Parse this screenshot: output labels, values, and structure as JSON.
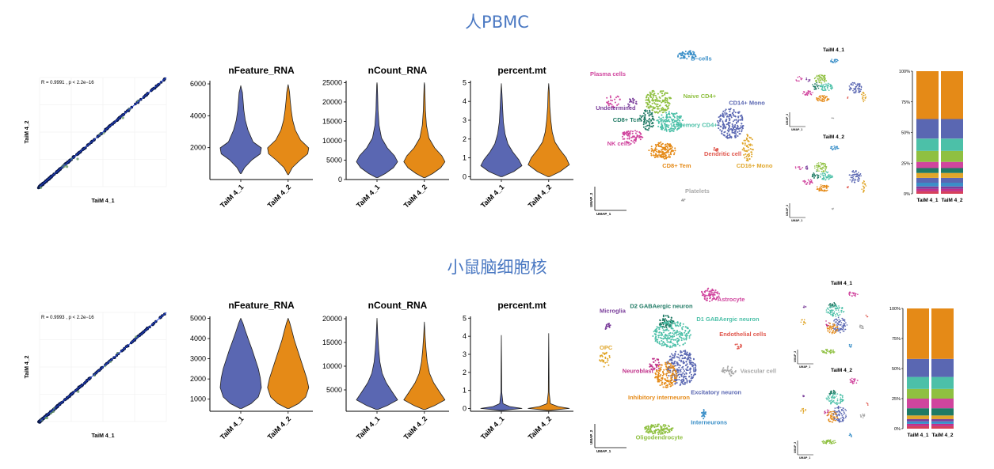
{
  "sections": [
    {
      "title": "人PBMC",
      "scatter": {
        "annotation": "R = 0.9991 , p < 2.2e−16",
        "xlabel": "TaiM 4_1",
        "ylabel": "TaiM 4_2"
      },
      "violins": [
        {
          "title": "nFeature_RNA",
          "ticks": [
            "2000",
            "4000",
            "6000"
          ],
          "tick_values": [
            2000,
            4000,
            6000
          ],
          "ylim": [
            0,
            6200
          ],
          "categories": [
            "TaiM 4_1",
            "TaiM 4_2"
          ]
        },
        {
          "title": "nCount_RNA",
          "ticks": [
            "0",
            "5000",
            "10000",
            "15000",
            "20000",
            "25000"
          ],
          "tick_values": [
            0,
            5000,
            10000,
            15000,
            20000,
            25000
          ],
          "ylim": [
            0,
            25500
          ],
          "categories": [
            "TaiM 4_1",
            "TaiM 4_2"
          ]
        },
        {
          "title": "percent.mt",
          "ticks": [
            "0",
            "1",
            "2",
            "3",
            "4",
            "5"
          ],
          "tick_values": [
            0,
            1,
            2,
            3,
            4,
            5
          ],
          "ylim": [
            -0.15,
            5.1
          ],
          "categories": [
            "TaiM 4_1",
            "TaiM 4_2"
          ]
        }
      ],
      "umap": {
        "xlabel": "UMAP_1",
        "ylabel": "UMAP_2",
        "clusters": [
          {
            "label": "B−cells",
            "color": "#3a8fc8"
          },
          {
            "label": "Plasma cells",
            "color": "#d0459e"
          },
          {
            "label": "Undetermined",
            "color": "#7b3f9b"
          },
          {
            "label": "Naive CD4+",
            "color": "#8fc041"
          },
          {
            "label": "CD14+ Mono",
            "color": "#5a67b2"
          },
          {
            "label": "CD8+ Tcm",
            "color": "#1f7a64"
          },
          {
            "label": "Memory CD4+",
            "color": "#4cc0a8"
          },
          {
            "label": "NK cells",
            "color": "#d0459e"
          },
          {
            "label": "Dendritic cell",
            "color": "#e0574d"
          },
          {
            "label": "CD8+ Tem",
            "color": "#e58a17"
          },
          {
            "label": "CD16+ Mono",
            "color": "#e0a62a"
          },
          {
            "label": "Platelets",
            "color": "#a9a9a9"
          }
        ]
      },
      "small_umaps": {
        "titles": [
          "TaiM 4_1",
          "TaiM 4_2"
        ],
        "xlabel": "UMAP_1",
        "ylabel": "UMAP_2"
      },
      "stacked": {
        "ticks": [
          "0%",
          "25%",
          "50%",
          "75%",
          "100%"
        ],
        "categories": [
          "TaiM 4_1",
          "TaiM 4_2"
        ],
        "colors": [
          "#d6415a",
          "#c0318a",
          "#7b3f9b",
          "#3a8fc8",
          "#5a67b2",
          "#e0a62a",
          "#1f7a64",
          "#d0459e",
          "#8fc041",
          "#4cc0a8",
          "#5a67b2",
          "#e58a17"
        ],
        "series": [
          {
            "values": [
              2,
              2
            ]
          },
          {
            "values": [
              2,
              2
            ]
          },
          {
            "values": [
              2,
              2
            ]
          },
          {
            "values": [
              3,
              3
            ]
          },
          {
            "values": [
              4,
              4
            ]
          },
          {
            "values": [
              4,
              4
            ]
          },
          {
            "values": [
              4,
              4
            ]
          },
          {
            "values": [
              5,
              5
            ]
          },
          {
            "values": [
              9,
              9
            ]
          },
          {
            "values": [
              10,
              10
            ]
          },
          {
            "values": [
              16,
              16
            ]
          },
          {
            "values": [
              39,
              39
            ]
          }
        ]
      }
    },
    {
      "title": "小鼠脑细胞核",
      "scatter": {
        "annotation": "R = 0.9993 , p < 2.2e−16",
        "xlabel": "TaiM 4_1",
        "ylabel": "TaiM 4_2"
      },
      "violins": [
        {
          "title": "nFeature_RNA",
          "ticks": [
            "1000",
            "2000",
            "3000",
            "4000",
            "5000"
          ],
          "tick_values": [
            1000,
            2000,
            3000,
            4000,
            5000
          ],
          "ylim": [
            400,
            5100
          ],
          "categories": [
            "TaiM 4_1",
            "TaiM 4_2"
          ]
        },
        {
          "title": "nCount_RNA",
          "ticks": [
            "5000",
            "10000",
            "15000",
            "20000"
          ],
          "tick_values": [
            5000,
            10000,
            15000,
            20000
          ],
          "ylim": [
            500,
            20500
          ],
          "categories": [
            "TaiM 4_1",
            "TaiM 4_2"
          ]
        },
        {
          "title": "percent.mt",
          "ticks": [
            "0",
            "1",
            "2",
            "3",
            "4",
            "5"
          ],
          "tick_values": [
            0,
            1,
            2,
            3,
            4,
            5
          ],
          "ylim": [
            -0.15,
            5.1
          ],
          "categories": [
            "TaiM 4_1",
            "TaiM 4_2"
          ]
        }
      ],
      "umap": {
        "xlabel": "UMAP_1",
        "ylabel": "UMAP_2",
        "clusters": [
          {
            "label": "Astrocyte",
            "color": "#d0459e"
          },
          {
            "label": "Microglia",
            "color": "#7b3f9b"
          },
          {
            "label": "D2 GABAergic neuron",
            "color": "#1f7a64"
          },
          {
            "label": "D1 GABAergic neuron",
            "color": "#4cc0a8"
          },
          {
            "label": "Endothelial cells",
            "color": "#e0574d"
          },
          {
            "label": "OPC",
            "color": "#e0a62a"
          },
          {
            "label": "Neuroblast",
            "color": "#c0318a"
          },
          {
            "label": "Vascular cell",
            "color": "#a9a9a9"
          },
          {
            "label": "Excitatory neuron",
            "color": "#5a67b2"
          },
          {
            "label": "Inhibitory interneuron",
            "color": "#e58a17"
          },
          {
            "label": "Interneurons",
            "color": "#3a8fc8"
          },
          {
            "label": "Oligodendrocyte",
            "color": "#8fc041"
          }
        ]
      },
      "small_umaps": {
        "titles": [
          "TaiM 4_1",
          "TaiM 4_2"
        ],
        "xlabel": "UMAP_1",
        "ylabel": "UMAP_2"
      },
      "stacked": {
        "ticks": [
          "0%",
          "25%",
          "50%",
          "75%",
          "100%"
        ],
        "categories": [
          "TaiM 4_1",
          "TaiM 4_2"
        ],
        "colors": [
          "#d6415a",
          "#c0318a",
          "#3a8fc8",
          "#7b3f9b",
          "#e0a62a",
          "#1f7a64",
          "#d0459e",
          "#8fc041",
          "#4cc0a8",
          "#5a67b2",
          "#e58a17"
        ],
        "series": [
          {
            "values": [
              2,
              2
            ]
          },
          {
            "values": [
              2,
              2
            ]
          },
          {
            "values": [
              2,
              2
            ]
          },
          {
            "values": [
              2,
              2
            ]
          },
          {
            "values": [
              3,
              3
            ]
          },
          {
            "values": [
              6,
              6
            ]
          },
          {
            "values": [
              8,
              8
            ]
          },
          {
            "values": [
              8,
              8
            ]
          },
          {
            "values": [
              10,
              10
            ]
          },
          {
            "values": [
              15,
              15
            ]
          },
          {
            "values": [
              42,
              42
            ]
          }
        ]
      }
    }
  ],
  "chart_data": [
    {
      "type": "scatter",
      "panel": "PBMC correlation",
      "annotation": "R = 0.9991 , p < 2.2e−16",
      "xlabel": "TaiM 4_1",
      "ylabel": "TaiM 4_2"
    },
    {
      "type": "violin",
      "panel": "PBMC QC",
      "categories": [
        "TaiM 4_1",
        "TaiM 4_2"
      ],
      "metrics": [
        "nFeature_RNA",
        "nCount_RNA",
        "percent.mt"
      ]
    },
    {
      "type": "scatter",
      "panel": "PBMC UMAP",
      "xlabel": "UMAP_1",
      "ylabel": "UMAP_2"
    },
    {
      "type": "bar",
      "stacked": true,
      "panel": "PBMC composition",
      "categories": [
        "TaiM 4_1",
        "TaiM 4_2"
      ],
      "ylim": [
        0,
        100
      ]
    },
    {
      "type": "scatter",
      "panel": "Mouse brain correlation",
      "annotation": "R = 0.9993 , p < 2.2e−16",
      "xlabel": "TaiM 4_1",
      "ylabel": "TaiM 4_2"
    },
    {
      "type": "violin",
      "panel": "Mouse brain QC",
      "categories": [
        "TaiM 4_1",
        "TaiM 4_2"
      ],
      "metrics": [
        "nFeature_RNA",
        "nCount_RNA",
        "percent.mt"
      ]
    },
    {
      "type": "scatter",
      "panel": "Mouse brain UMAP",
      "xlabel": "UMAP_1",
      "ylabel": "UMAP_2"
    },
    {
      "type": "bar",
      "stacked": true,
      "panel": "Mouse brain composition",
      "categories": [
        "TaiM 4_1",
        "TaiM 4_2"
      ],
      "ylim": [
        0,
        100
      ]
    }
  ]
}
